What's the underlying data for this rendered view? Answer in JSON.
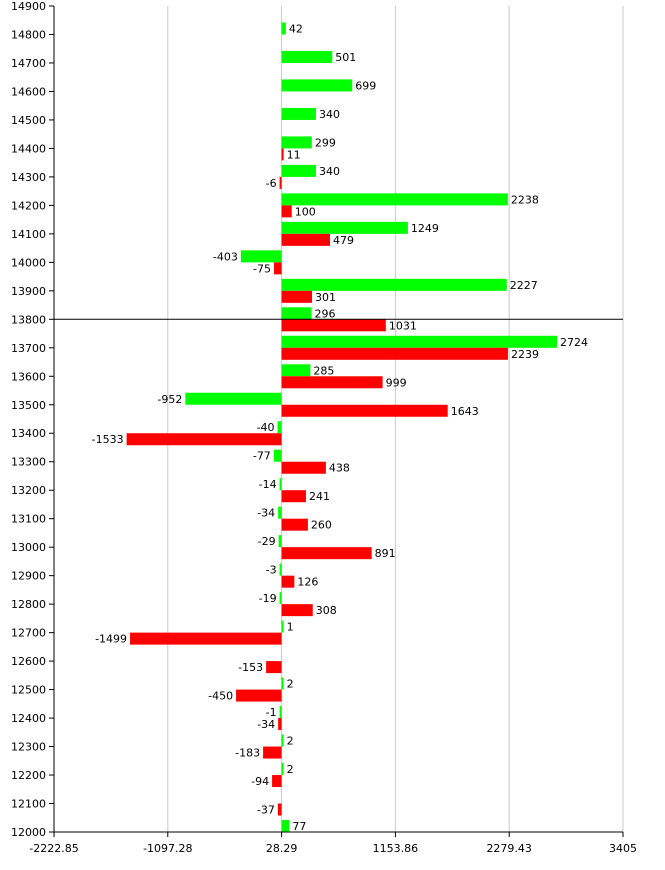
{
  "chart_data": {
    "type": "bar",
    "orientation": "horizontal",
    "title": "",
    "xlabel": "",
    "ylabel": "",
    "xlim": [
      -2222.85,
      3405
    ],
    "ylim": [
      12000,
      14900
    ],
    "x_ticks": [
      "-2222.85",
      "-1097.28",
      "28.29",
      "1153.86",
      "2279.43",
      "3405"
    ],
    "y_ticks": [
      "14900",
      "14800",
      "14700",
      "14600",
      "14500",
      "14400",
      "14300",
      "14200",
      "14100",
      "14000",
      "13900",
      "13800",
      "13700",
      "13600",
      "13500",
      "13400",
      "13300",
      "13200",
      "13100",
      "13000",
      "12900",
      "12800",
      "12700",
      "12600",
      "12500",
      "12400",
      "12300",
      "12200",
      "12100",
      "12000"
    ],
    "baseline": 28.29,
    "reference_line": 13800,
    "grid": "vertical",
    "colors": {
      "green": "#00ff00",
      "red": "#ff0000",
      "grid": "#c8c8c8",
      "ref_line": "#000000"
    },
    "rows": [
      {
        "y": 14800,
        "green": 42,
        "red": null
      },
      {
        "y": 14700,
        "green": 501,
        "red": null
      },
      {
        "y": 14600,
        "green": 699,
        "red": null
      },
      {
        "y": 14500,
        "green": 340,
        "red": null
      },
      {
        "y": 14400,
        "green": 299,
        "red": 11
      },
      {
        "y": 14300,
        "green": 340,
        "red": -6
      },
      {
        "y": 14200,
        "green": 2238,
        "red": 100
      },
      {
        "y": 14100,
        "green": 1249,
        "red": 479
      },
      {
        "y": 14000,
        "green": -403,
        "red": -75
      },
      {
        "y": 13900,
        "green": 2227,
        "red": 301
      },
      {
        "y": 13800,
        "green": 296,
        "red": 1031
      },
      {
        "y": 13700,
        "green": 2724,
        "red": 2239
      },
      {
        "y": 13600,
        "green": 285,
        "red": 999
      },
      {
        "y": 13500,
        "green": -952,
        "red": 1643
      },
      {
        "y": 13400,
        "green": -40,
        "red": -1533
      },
      {
        "y": 13300,
        "green": -77,
        "red": 438
      },
      {
        "y": 13200,
        "green": -14,
        "red": 241
      },
      {
        "y": 13100,
        "green": -34,
        "red": 260
      },
      {
        "y": 13000,
        "green": -29,
        "red": 891
      },
      {
        "y": 12900,
        "green": -3,
        "red": 126
      },
      {
        "y": 12800,
        "green": -19,
        "red": 308
      },
      {
        "y": 12700,
        "green": 1,
        "red": -1499
      },
      {
        "y": 12600,
        "green": null,
        "red": -153
      },
      {
        "y": 12500,
        "green": 2,
        "red": -450
      },
      {
        "y": 12400,
        "green": -1,
        "red": -34
      },
      {
        "y": 12300,
        "green": 2,
        "red": -183
      },
      {
        "y": 12200,
        "green": 2,
        "red": -94
      },
      {
        "y": 12100,
        "green": null,
        "red": -37
      },
      {
        "y": 12000,
        "green": 77,
        "red": null
      }
    ]
  }
}
